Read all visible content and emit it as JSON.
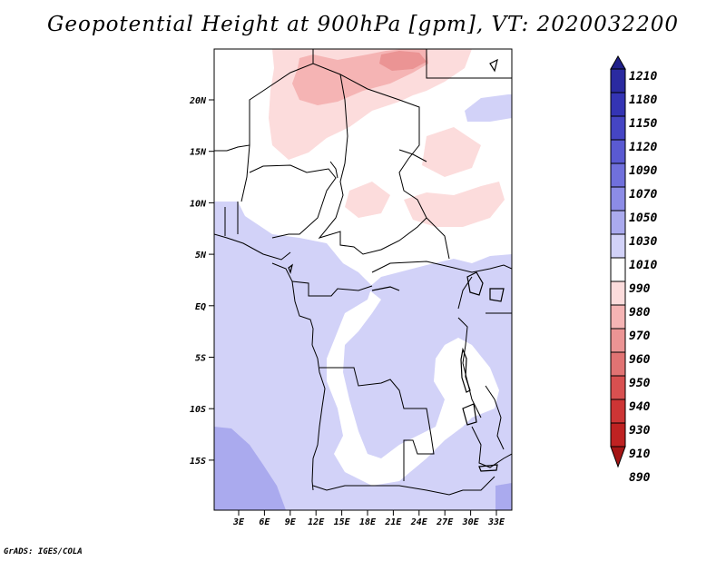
{
  "title": "Geopotential Height at 900hPa [gpm], VT: 2020032200",
  "footer": "GrADS: IGES/COLA",
  "map": {
    "lat_labels": [
      "20N",
      "15N",
      "10N",
      "5N",
      "EQ",
      "5S",
      "10S",
      "15S"
    ],
    "lon_labels": [
      "3E",
      "6E",
      "9E",
      "12E",
      "15E",
      "18E",
      "21E",
      "24E",
      "27E",
      "30E",
      "33E"
    ]
  },
  "colorbar": {
    "levels": [
      "1210",
      "1180",
      "1150",
      "1120",
      "1090",
      "1070",
      "1050",
      "1030",
      "1010",
      "990",
      "980",
      "970",
      "960",
      "950",
      "940",
      "930",
      "910",
      "890"
    ],
    "colors": [
      "#20208a",
      "#2a2aa0",
      "#3434b4",
      "#4545c4",
      "#5a5ad2",
      "#7070dc",
      "#8c8ce6",
      "#aaaaee",
      "#d2d2f8",
      "#ffffff",
      "#fcdcdc",
      "#f5b4b4",
      "#eb9494",
      "#e17373",
      "#d85050",
      "#cd3535",
      "#bf2222",
      "#a51515"
    ]
  }
}
